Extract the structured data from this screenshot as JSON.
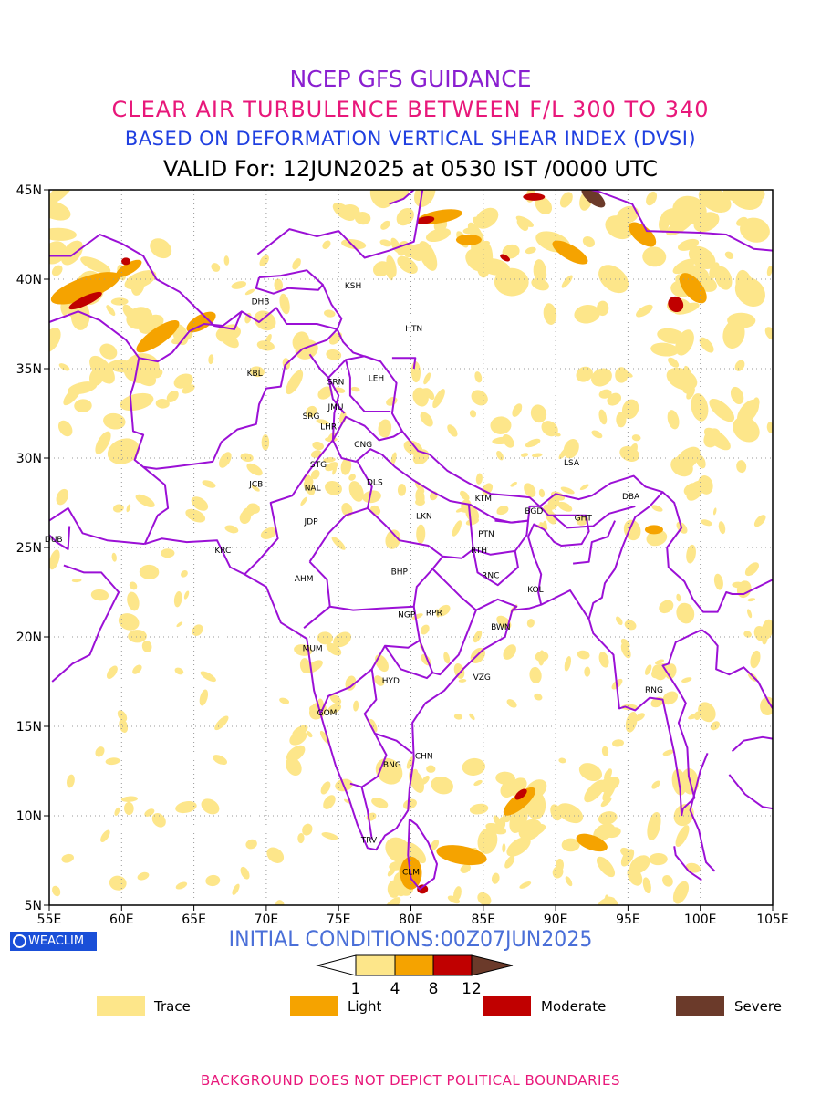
{
  "titles": {
    "line1": "NCEP GFS GUIDANCE",
    "line2": "CLEAR AIR TURBULENCE BETWEEN F/L 300 TO 340",
    "line3": "BASED ON DEFORMATION VERTICAL SHEAR INDEX (DVSI)",
    "line4": "VALID For: 12JUN2025 at 0530 IST /0000 UTC"
  },
  "colors": {
    "title1": "#8a1fd0",
    "title2": "#e8177a",
    "title3": "#1f3fe0",
    "title4": "#000000",
    "boundary": "#9b10d6",
    "trace": "#fde68a",
    "light": "#f5a300",
    "moderate": "#c00000",
    "severe": "#6b3a2a",
    "initcond": "#4a6fd8",
    "footer": "#e8177a",
    "logo_bg": "#1a4fd8"
  },
  "axes": {
    "lon_ticks": [
      "55E",
      "60E",
      "65E",
      "70E",
      "75E",
      "80E",
      "85E",
      "90E",
      "95E",
      "100E",
      "105E"
    ],
    "lat_ticks": [
      "5N",
      "10N",
      "15N",
      "20N",
      "25N",
      "30N",
      "35N",
      "40N",
      "45N"
    ]
  },
  "stations": [
    {
      "code": "KSH",
      "lon": 76.0,
      "lat": 39.5
    },
    {
      "code": "DHB",
      "lon": 69.6,
      "lat": 38.6
    },
    {
      "code": "HTN",
      "lon": 80.2,
      "lat": 37.1
    },
    {
      "code": "KBL",
      "lon": 69.2,
      "lat": 34.6
    },
    {
      "code": "SRN",
      "lon": 74.8,
      "lat": 34.1
    },
    {
      "code": "LEH",
      "lon": 77.6,
      "lat": 34.3
    },
    {
      "code": "JMU",
      "lon": 74.8,
      "lat": 32.7
    },
    {
      "code": "SRG",
      "lon": 73.1,
      "lat": 32.2
    },
    {
      "code": "LHR",
      "lon": 74.3,
      "lat": 31.6
    },
    {
      "code": "CNG",
      "lon": 76.7,
      "lat": 30.6
    },
    {
      "code": "STG",
      "lon": 73.6,
      "lat": 29.5
    },
    {
      "code": "LSA",
      "lon": 91.1,
      "lat": 29.6
    },
    {
      "code": "JCB",
      "lon": 69.3,
      "lat": 28.4
    },
    {
      "code": "NAL",
      "lon": 73.2,
      "lat": 28.2
    },
    {
      "code": "DLS",
      "lon": 77.5,
      "lat": 28.5
    },
    {
      "code": "KTM",
      "lon": 85.0,
      "lat": 27.6
    },
    {
      "code": "DBA",
      "lon": 95.2,
      "lat": 27.7
    },
    {
      "code": "BGD",
      "lon": 88.5,
      "lat": 26.9
    },
    {
      "code": "GHT",
      "lon": 91.9,
      "lat": 26.5
    },
    {
      "code": "JDP",
      "lon": 73.1,
      "lat": 26.3
    },
    {
      "code": "LKN",
      "lon": 80.9,
      "lat": 26.6
    },
    {
      "code": "PTN",
      "lon": 85.2,
      "lat": 25.6
    },
    {
      "code": "DUB",
      "lon": 55.3,
      "lat": 25.3
    },
    {
      "code": "KRC",
      "lon": 67.0,
      "lat": 24.7
    },
    {
      "code": "RTH",
      "lon": 84.7,
      "lat": 24.7
    },
    {
      "code": "AHM",
      "lon": 72.6,
      "lat": 23.1
    },
    {
      "code": "BHP",
      "lon": 79.2,
      "lat": 23.5
    },
    {
      "code": "RNC",
      "lon": 85.5,
      "lat": 23.3
    },
    {
      "code": "KOL",
      "lon": 88.6,
      "lat": 22.5
    },
    {
      "code": "NGP",
      "lon": 79.7,
      "lat": 21.1
    },
    {
      "code": "RPR",
      "lon": 81.6,
      "lat": 21.2
    },
    {
      "code": "BWN",
      "lon": 86.2,
      "lat": 20.4
    },
    {
      "code": "MUM",
      "lon": 73.2,
      "lat": 19.2
    },
    {
      "code": "HYD",
      "lon": 78.6,
      "lat": 17.4
    },
    {
      "code": "VZG",
      "lon": 84.9,
      "lat": 17.6
    },
    {
      "code": "RNG",
      "lon": 96.8,
      "lat": 16.9
    },
    {
      "code": "GOM",
      "lon": 74.2,
      "lat": 15.6
    },
    {
      "code": "CHN",
      "lon": 80.9,
      "lat": 13.2
    },
    {
      "code": "BNG",
      "lon": 78.7,
      "lat": 12.7
    },
    {
      "code": "TRV",
      "lon": 77.1,
      "lat": 8.5
    },
    {
      "code": "CLM",
      "lon": 80.0,
      "lat": 6.7
    }
  ],
  "colorbar": {
    "ticks": [
      "1",
      "4",
      "8",
      "12"
    ]
  },
  "legend": [
    {
      "label": "Trace",
      "color_key": "trace"
    },
    {
      "label": "Light",
      "color_key": "light"
    },
    {
      "label": "Moderate",
      "color_key": "moderate"
    },
    {
      "label": "Severe",
      "color_key": "severe"
    }
  ],
  "logo": {
    "text": "WEACLIM"
  },
  "initial_conditions": "INITIAL CONDITIONS:00Z07JUN2025",
  "footer": "BACKGROUND DOES NOT DEPICT POLITICAL BOUNDARIES"
}
